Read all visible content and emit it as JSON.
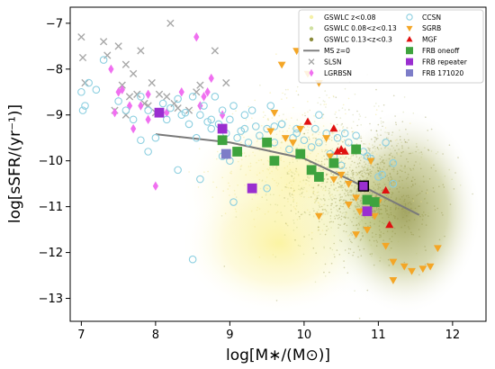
{
  "chart_data": {
    "type": "scatter",
    "xlabel": "log[M∗/(M⊙)]",
    "ylabel": "log[sSFR/(yr⁻¹)]",
    "xlim": [
      6.85,
      12.45
    ],
    "ylim": [
      -13.5,
      -6.65
    ],
    "x_ticks": [
      "7",
      "8",
      "9",
      "10",
      "11",
      "12"
    ],
    "x_tick_values": [
      7,
      8,
      9,
      10,
      11,
      12
    ],
    "y_ticks": [
      "−7",
      "−8",
      "−9",
      "−10",
      "−11",
      "−12",
      "−13"
    ],
    "y_tick_values": [
      -7,
      -8,
      -9,
      -10,
      -11,
      -12,
      -13
    ],
    "grid": false,
    "legend_position": "top-right",
    "legend": [
      {
        "label": "GSWLC z<0.08",
        "marker": "dot",
        "color": "#f5f0a8"
      },
      {
        "label": "CCSN",
        "marker": "circle-open",
        "color": "#8ccfe0"
      },
      {
        "label": "GSWLC 0.08<z<0.13",
        "marker": "dot",
        "color": "#cfe0a0"
      },
      {
        "label": "SGRB",
        "marker": "triangle-down",
        "color": "#f4a626"
      },
      {
        "label": "GSWLC 0.13<z<0.3",
        "marker": "dot",
        "color": "#8a8a3a"
      },
      {
        "label": "MGF",
        "marker": "triangle-up",
        "color": "#e01010"
      },
      {
        "label": "MS z=0",
        "marker": "line",
        "color": "#808080"
      },
      {
        "label": "FRB oneoff",
        "marker": "square",
        "color": "#3ea33e"
      },
      {
        "label": "SLSN",
        "marker": "x",
        "color": "#a8a8a8"
      },
      {
        "label": "FRB repeater",
        "marker": "square",
        "color": "#9a2ed0"
      },
      {
        "label": "LGRBSN",
        "marker": "diamond",
        "color": "#f070f0"
      },
      {
        "label": "FRB 171020",
        "marker": "square",
        "color": "#7d7dc8"
      }
    ],
    "ms_line": {
      "x": [
        8.0,
        9.0,
        10.0,
        10.6,
        11.0,
        11.55
      ],
      "y": [
        -9.42,
        -9.6,
        -9.95,
        -10.4,
        -10.73,
        -11.18
      ]
    },
    "series": [
      {
        "name": "SLSN",
        "color": "#a8a8a8",
        "x": [
          7.0,
          7.02,
          7.05,
          7.3,
          7.45,
          7.5,
          7.55,
          7.6,
          7.65,
          7.7,
          7.75,
          7.8,
          7.85,
          7.9,
          7.95,
          8.0,
          8.05,
          8.2,
          8.25,
          8.3,
          8.55,
          8.8,
          8.95,
          7.35,
          7.6,
          8.15,
          8.45,
          8.6
        ],
        "y": [
          -7.3,
          -7.75,
          -8.3,
          -7.4,
          -8.9,
          -7.5,
          -8.35,
          -7.9,
          -8.6,
          -8.1,
          -8.55,
          -7.6,
          -8.75,
          -8.8,
          -8.3,
          -8.95,
          -8.55,
          -7.0,
          -8.75,
          -8.85,
          -8.5,
          -7.6,
          -8.3,
          -7.7,
          -9.0,
          -8.6,
          -8.9,
          -8.35
        ]
      },
      {
        "name": "LGRBSN",
        "color": "#f070f0",
        "x": [
          7.4,
          7.45,
          7.5,
          7.55,
          7.65,
          7.7,
          7.8,
          7.9,
          8.0,
          8.15,
          8.35,
          8.55,
          8.6,
          8.65,
          8.7,
          8.75,
          8.9,
          7.9
        ],
        "y": [
          -8.0,
          -8.95,
          -8.5,
          -8.45,
          -8.8,
          -9.3,
          -8.8,
          -8.55,
          -10.55,
          -8.95,
          -8.5,
          -7.3,
          -8.8,
          -8.6,
          -8.5,
          -8.2,
          -9.0,
          -9.1
        ]
      },
      {
        "name": "CCSN",
        "color": "#8ccfe0",
        "x": [
          7.0,
          7.02,
          7.05,
          7.1,
          7.2,
          7.3,
          7.5,
          7.6,
          7.7,
          7.8,
          7.9,
          8.0,
          8.1,
          8.15,
          8.2,
          8.3,
          8.4,
          8.45,
          8.5,
          8.55,
          8.6,
          8.65,
          8.7,
          8.75,
          8.8,
          8.85,
          8.9,
          8.95,
          9.0,
          9.05,
          9.1,
          9.15,
          9.2,
          9.25,
          9.3,
          9.35,
          9.4,
          9.5,
          9.55,
          9.6,
          9.7,
          9.8,
          9.85,
          9.9,
          10.0,
          10.1,
          10.15,
          10.2,
          10.3,
          10.35,
          10.4,
          10.5,
          10.55,
          10.6,
          10.7,
          10.8,
          10.9,
          11.0,
          11.1,
          11.2,
          7.8,
          8.3,
          8.6,
          8.75,
          8.9,
          9.0,
          9.2,
          9.5,
          9.7,
          9.9,
          10.2,
          10.45,
          10.85,
          11.05,
          11.2,
          8.35,
          9.05,
          8.5,
          7.9,
          9.6
        ],
        "y": [
          -8.5,
          -8.9,
          -8.8,
          -8.3,
          -8.45,
          -7.8,
          -8.7,
          -8.9,
          -9.1,
          -8.6,
          -8.9,
          -9.5,
          -8.75,
          -9.1,
          -8.85,
          -8.65,
          -8.95,
          -9.2,
          -8.6,
          -9.5,
          -9.0,
          -8.8,
          -9.15,
          -9.3,
          -8.6,
          -9.2,
          -8.9,
          -9.4,
          -9.1,
          -8.8,
          -9.5,
          -9.35,
          -9.0,
          -9.6,
          -8.9,
          -9.25,
          -9.45,
          -9.3,
          -8.8,
          -9.6,
          -9.2,
          -9.75,
          -9.5,
          -9.3,
          -9.55,
          -9.7,
          -9.3,
          -9.6,
          -9.4,
          -9.85,
          -9.9,
          -10.1,
          -9.4,
          -9.6,
          -9.45,
          -9.8,
          -9.95,
          -10.35,
          -9.6,
          -10.05,
          -9.55,
          -10.2,
          -10.4,
          -9.1,
          -9.9,
          -10.0,
          -9.3,
          -10.6,
          -9.2,
          -9.4,
          -9.0,
          -9.5,
          -9.9,
          -10.3,
          -10.5,
          -9.0,
          -10.9,
          -12.15,
          -9.8,
          -9.25
        ]
      },
      {
        "name": "SGRB",
        "color": "#f4a626",
        "x": [
          9.7,
          9.9,
          10.05,
          10.2,
          9.55,
          9.6,
          9.75,
          9.85,
          9.95,
          10.3,
          10.35,
          10.5,
          10.6,
          10.7,
          10.75,
          10.85,
          10.95,
          11.0,
          11.1,
          11.2,
          11.35,
          11.45,
          11.6,
          11.7,
          11.8,
          10.4,
          10.9,
          10.7,
          10.2,
          10.6,
          11.2
        ],
        "y": [
          -7.9,
          -7.6,
          -8.1,
          -8.3,
          -9.35,
          -8.95,
          -9.5,
          -9.6,
          -9.3,
          -9.5,
          -9.9,
          -10.3,
          -10.5,
          -10.8,
          -11.1,
          -11.5,
          -11.2,
          -10.9,
          -11.85,
          -12.2,
          -12.3,
          -12.4,
          -12.35,
          -12.3,
          -11.9,
          -10.4,
          -10.0,
          -11.6,
          -11.2,
          -10.95,
          -12.6
        ]
      },
      {
        "name": "MGF",
        "color": "#e01010",
        "x": [
          10.05,
          10.4,
          10.45,
          10.5,
          10.55,
          11.1,
          11.15
        ],
        "y": [
          -9.15,
          -9.3,
          -9.8,
          -9.75,
          -9.8,
          -10.65,
          -11.4
        ]
      },
      {
        "name": "FRB oneoff",
        "color": "#3ea33e",
        "x": [
          8.9,
          9.1,
          9.5,
          9.6,
          9.95,
          10.1,
          10.2,
          10.4,
          10.7,
          10.85,
          10.95
        ],
        "y": [
          -9.55,
          -9.8,
          -9.6,
          -10.0,
          -9.85,
          -10.2,
          -10.35,
          -10.05,
          -9.75,
          -10.85,
          -10.9
        ]
      },
      {
        "name": "FRB repeater",
        "color": "#9a2ed0",
        "x": [
          8.05,
          8.9,
          9.3,
          10.8,
          10.85
        ],
        "y": [
          -8.95,
          -9.3,
          -10.6,
          -10.55,
          -11.1
        ]
      },
      {
        "name": "FRB 171020",
        "color": "#7d7dc8",
        "x": [
          8.95
        ],
        "y": [
          -9.85
        ]
      }
    ]
  }
}
